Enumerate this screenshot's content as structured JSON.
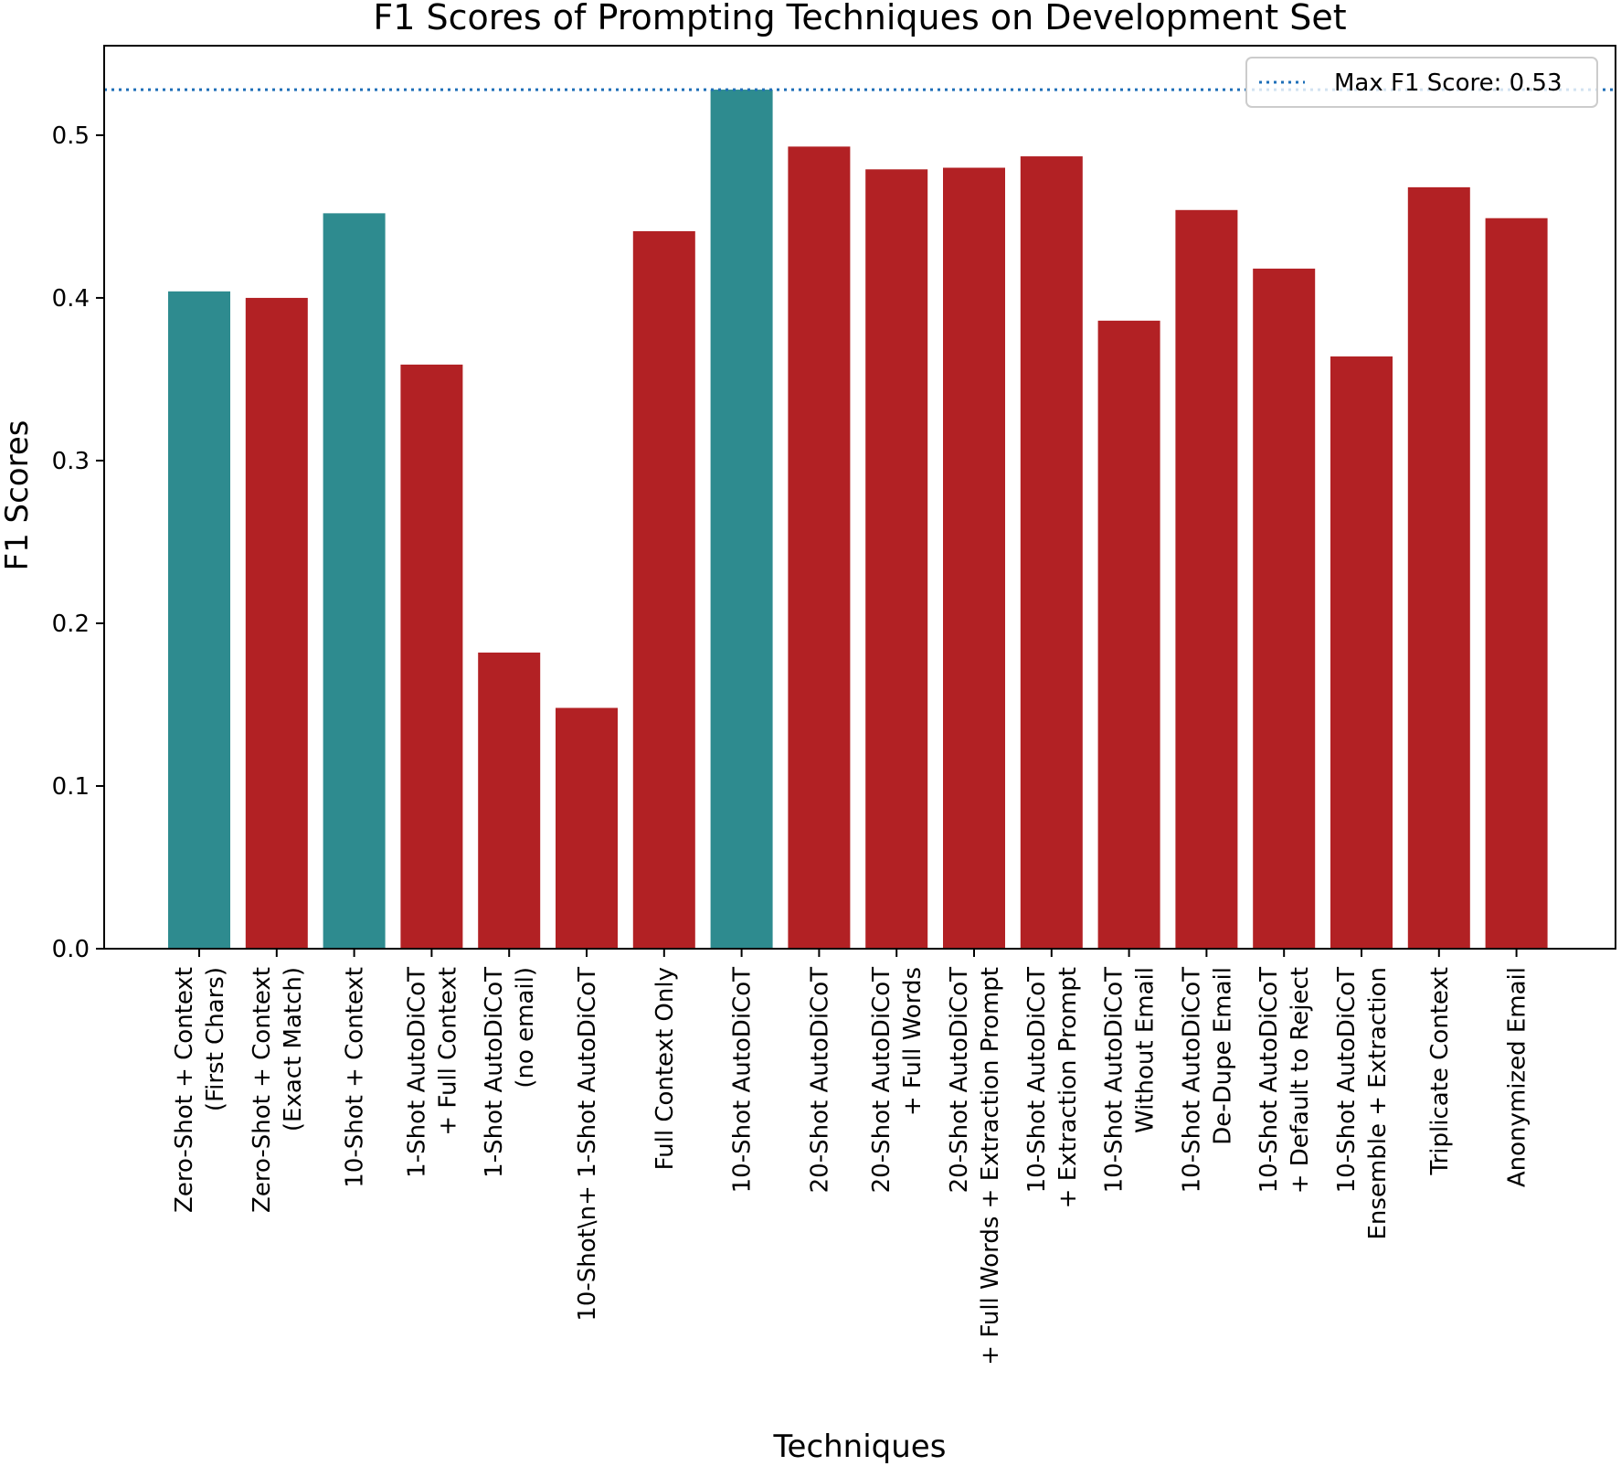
{
  "chart_data": {
    "type": "bar",
    "title": "F1 Scores of Prompting Techniques on Development Set",
    "xlabel": "Techniques",
    "ylabel": "F1 Scores",
    "ylim": [
      0,
      0.555
    ],
    "yticks": [
      "0.0",
      "0.1",
      "0.2",
      "0.3",
      "0.4",
      "0.5"
    ],
    "categories": [
      [
        "Zero-Shot + Context",
        "(First Chars)"
      ],
      [
        "Zero-Shot + Context",
        "(Exact Match)"
      ],
      [
        "10-Shot + Context"
      ],
      [
        "1-Shot AutoDiCoT",
        "+ Full Context"
      ],
      [
        "1-Shot AutoDiCoT",
        "(no email)"
      ],
      [
        "10-Shot\\n+ 1-Shot AutoDiCoT"
      ],
      [
        "Full Context Only"
      ],
      [
        "10-Shot AutoDiCoT"
      ],
      [
        "20-Shot AutoDiCoT"
      ],
      [
        "20-Shot AutoDiCoT",
        "+ Full Words"
      ],
      [
        "20-Shot AutoDiCoT",
        "+ Full Words + Extraction Prompt"
      ],
      [
        "10-Shot AutoDiCoT",
        "+ Extraction Prompt"
      ],
      [
        "10-Shot AutoDiCoT",
        "Without Email"
      ],
      [
        "10-Shot AutoDiCoT",
        "De-Dupe Email"
      ],
      [
        "10-Shot AutoDiCoT",
        "+ Default to Reject"
      ],
      [
        "10-Shot AutoDiCoT",
        "Ensemble + Extraction"
      ],
      [
        "Triplicate Context"
      ],
      [
        "Anonymized Email"
      ]
    ],
    "values": [
      0.404,
      0.4,
      0.452,
      0.359,
      0.182,
      0.148,
      0.441,
      0.528,
      0.493,
      0.479,
      0.48,
      0.487,
      0.386,
      0.454,
      0.418,
      0.364,
      0.468,
      0.449
    ],
    "bar_groups": [
      "teal",
      "red",
      "teal",
      "red",
      "red",
      "red",
      "red",
      "teal",
      "red",
      "red",
      "red",
      "red",
      "red",
      "red",
      "red",
      "red",
      "red",
      "red"
    ],
    "colors": {
      "teal": "#2e8b8f",
      "red": "#b22124",
      "reference_line": "#1f6fb8"
    },
    "reference_line": {
      "value": 0.528,
      "label": "Max F1 Score: 0.53"
    },
    "legend": "top-right"
  }
}
